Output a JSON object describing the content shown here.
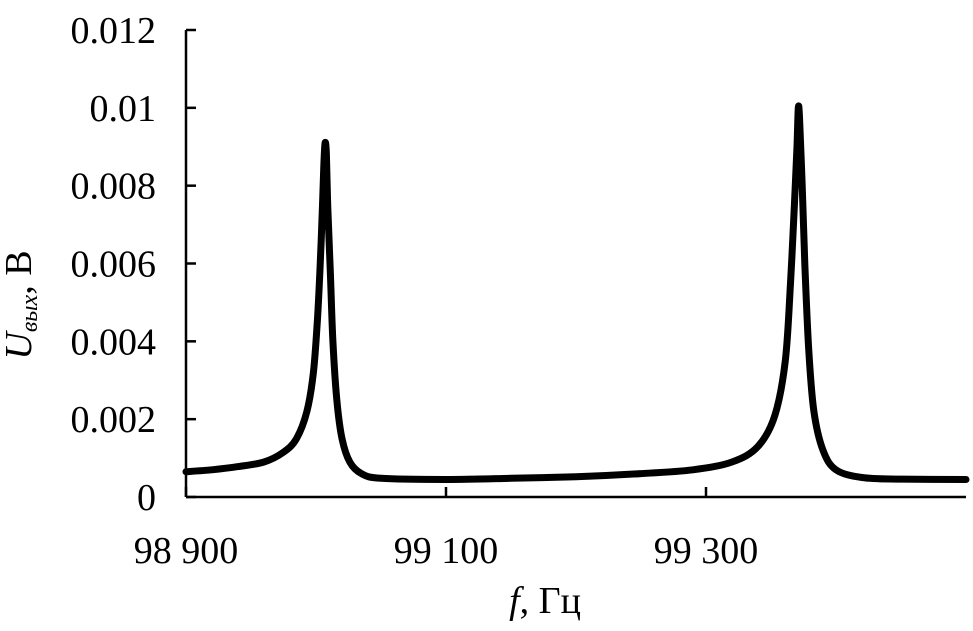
{
  "chart_data": {
    "type": "line",
    "title": "",
    "xlabel": {
      "main": "f",
      "rest": ", Гц"
    },
    "ylabel": {
      "main": "U",
      "sub": "вых",
      "rest": ", В"
    },
    "xlim": [
      98900,
      99500
    ],
    "ylim": [
      0,
      0.012
    ],
    "x_ticks": [
      {
        "value": 98900,
        "label": "98 900"
      },
      {
        "value": 99100,
        "label": "99 100"
      },
      {
        "value": 99300,
        "label": "99 300"
      }
    ],
    "y_ticks": [
      {
        "value": 0,
        "label": "0"
      },
      {
        "value": 0.002,
        "label": "0.002"
      },
      {
        "value": 0.004,
        "label": "0.004"
      },
      {
        "value": 0.006,
        "label": "0.006"
      },
      {
        "value": 0.008,
        "label": "0.008"
      },
      {
        "value": 0.01,
        "label": "0.01"
      },
      {
        "value": 0.012,
        "label": "0.012"
      }
    ],
    "grid": false,
    "series": [
      {
        "color": "#000000",
        "points": [
          [
            98900,
            0.00065
          ],
          [
            98920,
            0.0007
          ],
          [
            98940,
            0.00078
          ],
          [
            98960,
            0.0009
          ],
          [
            98975,
            0.00115
          ],
          [
            98985,
            0.0015
          ],
          [
            98993,
            0.0022
          ],
          [
            98998,
            0.0032
          ],
          [
            99001,
            0.0045
          ],
          [
            99003,
            0.0058
          ],
          [
            99005,
            0.0075
          ],
          [
            99006,
            0.0085
          ],
          [
            99007,
            0.0091
          ],
          [
            99008,
            0.0088
          ],
          [
            99009,
            0.0075
          ],
          [
            99011,
            0.0058
          ],
          [
            99013,
            0.004
          ],
          [
            99016,
            0.0025
          ],
          [
            99020,
            0.0015
          ],
          [
            99026,
            0.0009
          ],
          [
            99035,
            0.0006
          ],
          [
            99050,
            0.00048
          ],
          [
            99100,
            0.00045
          ],
          [
            99150,
            0.00048
          ],
          [
            99200,
            0.00052
          ],
          [
            99250,
            0.0006
          ],
          [
            99290,
            0.0007
          ],
          [
            99320,
            0.0009
          ],
          [
            99340,
            0.0013
          ],
          [
            99353,
            0.0021
          ],
          [
            99361,
            0.0035
          ],
          [
            99365,
            0.0055
          ],
          [
            99368,
            0.0075
          ],
          [
            99370,
            0.009
          ],
          [
            99371,
            0.01
          ],
          [
            99372,
            0.0097
          ],
          [
            99374,
            0.008
          ],
          [
            99376,
            0.006
          ],
          [
            99379,
            0.0038
          ],
          [
            99383,
            0.0022
          ],
          [
            99390,
            0.0012
          ],
          [
            99400,
            0.0007
          ],
          [
            99420,
            0.0005
          ],
          [
            99450,
            0.00046
          ],
          [
            99500,
            0.00045
          ]
        ]
      }
    ]
  }
}
